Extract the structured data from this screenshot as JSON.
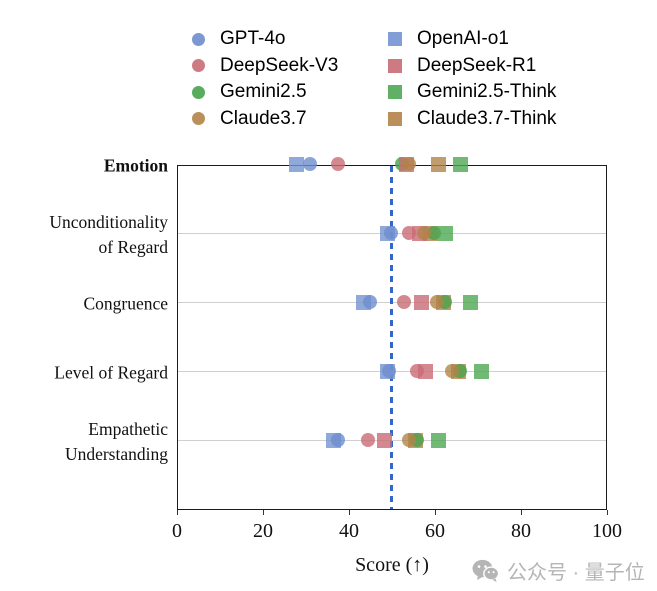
{
  "legend": {
    "entries": [
      {
        "label": "GPT-4o",
        "marker": "circle",
        "color": "#6d8dcd"
      },
      {
        "label": "OpenAI-o1",
        "marker": "square",
        "color": "#7494d2"
      },
      {
        "label": "DeepSeek-V3",
        "marker": "circle",
        "color": "#c96b74"
      },
      {
        "label": "DeepSeek-R1",
        "marker": "square",
        "color": "#c96b74"
      },
      {
        "label": "Gemini2.5",
        "marker": "circle",
        "color": "#47a24b"
      },
      {
        "label": "Gemini2.5-Think",
        "marker": "square",
        "color": "#4fa854"
      },
      {
        "label": "Claude3.7",
        "marker": "circle",
        "color": "#b28349"
      },
      {
        "label": "Claude3.7-Think",
        "marker": "square",
        "color": "#b28349"
      }
    ]
  },
  "chart_data": {
    "type": "scatter",
    "title": "",
    "xlabel": "Score (↑)",
    "xlim": [
      0,
      100
    ],
    "xticks": [
      0,
      20,
      40,
      60,
      80,
      100
    ],
    "grid": "horizontal",
    "legend_position": "top",
    "categories": [
      "Emotion",
      "Unconditionality of Regard",
      "Congruence",
      "Level of Regard",
      "Empathetic Understanding"
    ],
    "category_lines": [
      [
        "Emotion"
      ],
      [
        "Unconditionality",
        "of Regard"
      ],
      [
        "Congruence"
      ],
      [
        "Level of Regard"
      ],
      [
        "Empathetic",
        "Understanding"
      ]
    ],
    "bold_category_index": 0,
    "reference_line": {
      "x": 50,
      "style": "dashed",
      "color": "#3465c8"
    },
    "draw_order": [
      1,
      7,
      4,
      3,
      2,
      6,
      0,
      5
    ],
    "series": [
      {
        "name": "GPT-4o",
        "marker": "circle",
        "color": "#6d8dcd",
        "values": [
          31,
          50,
          45,
          49.5,
          37.5
        ]
      },
      {
        "name": "OpenAI-o1",
        "marker": "square",
        "color": "#7494d2",
        "values": [
          28,
          49,
          43.5,
          49,
          36.5
        ]
      },
      {
        "name": "DeepSeek-V3",
        "marker": "circle",
        "color": "#c96b74",
        "values": [
          37.5,
          54,
          53,
          56,
          44.5
        ]
      },
      {
        "name": "DeepSeek-R1",
        "marker": "square",
        "color": "#c96b74",
        "values": [
          53.5,
          56.5,
          57,
          58,
          48.5
        ]
      },
      {
        "name": "Gemini2.5",
        "marker": "circle",
        "color": "#47a24b",
        "values": [
          52.5,
          60,
          62.5,
          66,
          56
        ]
      },
      {
        "name": "Gemini2.5-Think",
        "marker": "square",
        "color": "#4fa854",
        "values": [
          66,
          62.5,
          68.5,
          71,
          61
        ]
      },
      {
        "name": "Claude3.7",
        "marker": "circle",
        "color": "#b28349",
        "values": [
          54,
          57.5,
          60.5,
          64,
          54
        ]
      },
      {
        "name": "Claude3.7-Think",
        "marker": "square",
        "color": "#b28349",
        "values": [
          61,
          59,
          62,
          65.5,
          55.5
        ]
      }
    ]
  },
  "watermark": {
    "text": "公众号 · 量子位",
    "icon": "wechat-icon"
  }
}
